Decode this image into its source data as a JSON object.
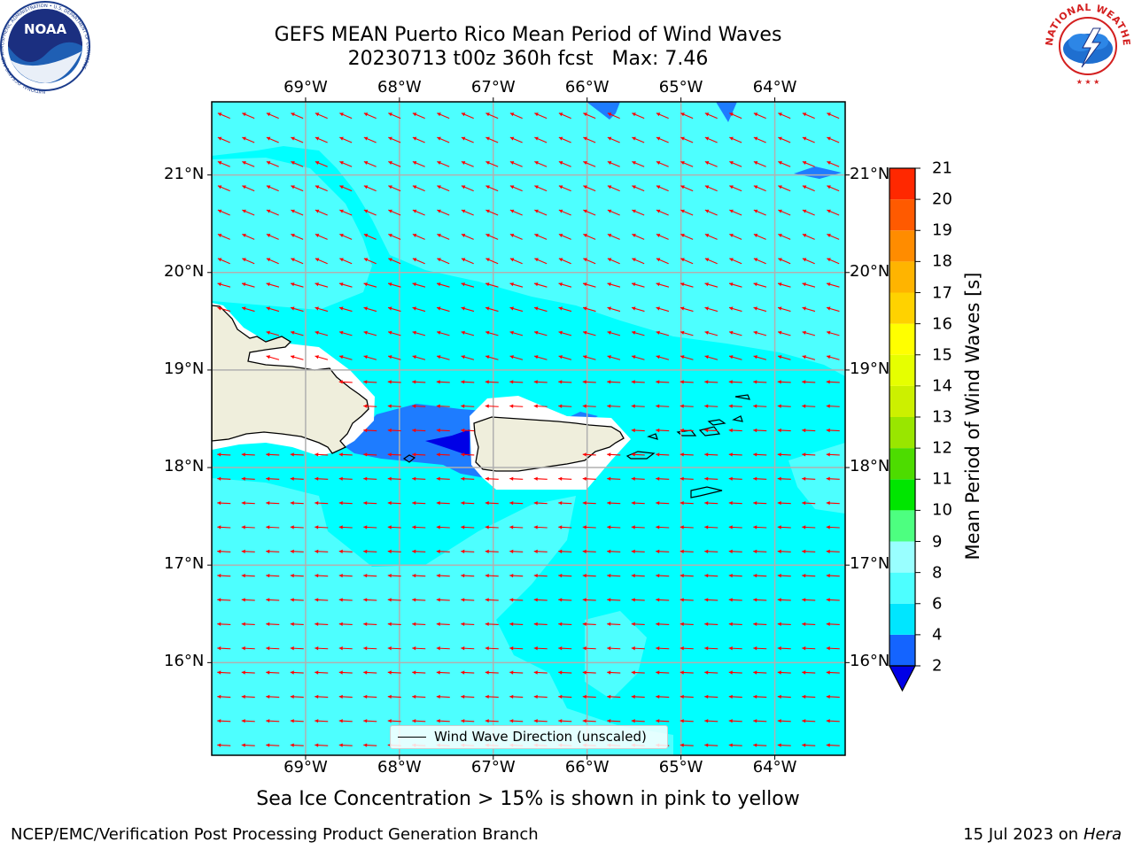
{
  "title": {
    "line1": "GEFS MEAN Puerto Rico Mean Period of Wind Waves",
    "line2": "20230713 t00z 360h fcst   Max: 7.46"
  },
  "logos": {
    "noaa_text": "NOAA",
    "noaa_ring": "NATIONAL OCEANIC AND ATMOSPHERIC ADMINISTRATION • U.S. DEPARTMENT OF COMMERCE",
    "nws_ring": "NATIONAL WEATHER SERVICE"
  },
  "map": {
    "lon_labels": [
      "69°W",
      "68°W",
      "67°W",
      "66°W",
      "65°W",
      "64°W"
    ],
    "lat_labels": [
      "21°N",
      "20°N",
      "19°N",
      "18°N",
      "17°N",
      "16°N"
    ],
    "lon_range": [
      -70,
      -63.25
    ],
    "lat_range": [
      15.05,
      21.75
    ],
    "colors": {
      "ocean_4_6": "#00ffff",
      "ocean_6_8": "#4dffff",
      "ocean_2_4": "#1e7cff",
      "ocean_lt2": "#0000e6",
      "land": "#efeedc",
      "no_data": "#ffffff",
      "grid": "#b0b0b0",
      "arrow": "#ff0000"
    }
  },
  "legend": {
    "label": "Wind Wave Direction (unscaled)"
  },
  "colorbar": {
    "label": "Mean Period of Wind Waves [s]",
    "ticks": [
      "2",
      "4",
      "6",
      "8",
      "9",
      "10",
      "11",
      "12",
      "13",
      "14",
      "15",
      "16",
      "17",
      "18",
      "19",
      "20",
      "21"
    ],
    "colors": [
      "#1464ff",
      "#00e6ff",
      "#4dffff",
      "#99ffff",
      "#4dff80",
      "#00e600",
      "#4ddc00",
      "#99e600",
      "#ccf000",
      "#e6ff00",
      "#ffff00",
      "#ffd200",
      "#ffb400",
      "#ff8c00",
      "#ff5a00",
      "#ff2800",
      "#ff0000"
    ],
    "extend_color": "#0000e6"
  },
  "note": "Sea Ice Concentration > 15% is shown in pink to yellow",
  "footer": {
    "left": "NCEP/EMC/Verification Post Processing Product Generation Branch",
    "right_date": "15 Jul 2023 on ",
    "right_host": "Hera"
  }
}
